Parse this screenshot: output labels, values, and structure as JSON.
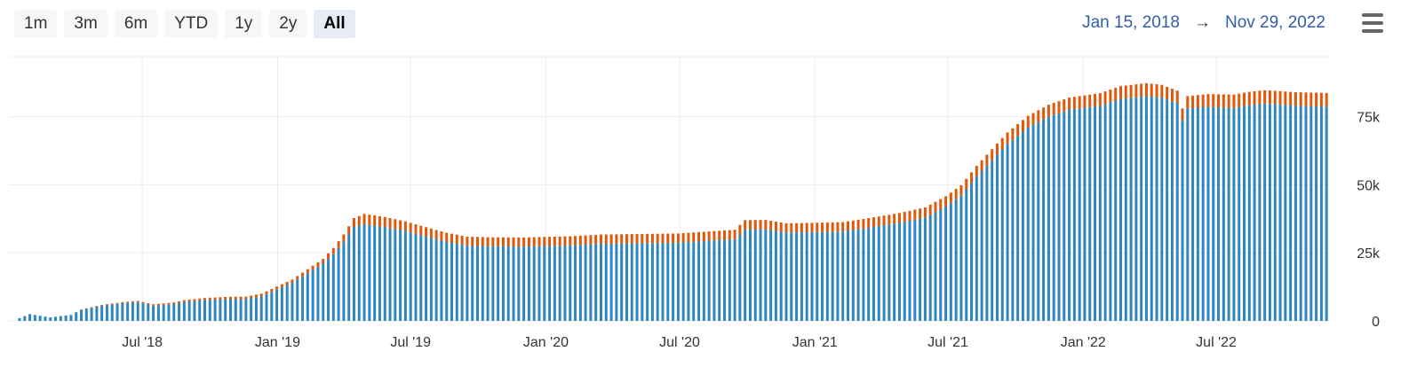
{
  "range_selector": {
    "buttons": [
      "1m",
      "3m",
      "6m",
      "YTD",
      "1y",
      "2y",
      "All"
    ],
    "selected": "All"
  },
  "date_range": {
    "from": "Jan 15, 2018",
    "arrow": "→",
    "to": "Nov 29, 2022"
  },
  "icons": {
    "menu": "hamburger-menu-icon"
  },
  "colors": {
    "series_base": "#2e86c1",
    "series_top": "#e1580a",
    "accent": "#335cad"
  },
  "chart_data": {
    "type": "bar",
    "stacked": true,
    "x_axis_ticks": [
      "Jul '18",
      "Jan '19",
      "Jul '19",
      "Jan '20",
      "Jul '20",
      "Jan '21",
      "Jul '21",
      "Jan '22",
      "Jul '22"
    ],
    "y_axis_ticks": [
      "0",
      "25k",
      "50k",
      "75k"
    ],
    "ylim": [
      0,
      97000
    ],
    "grid": true,
    "y_axis_position": "right",
    "x_start": "2018-01-15",
    "x_end": "2022-11-29",
    "series": [
      {
        "color": "#2e86c1",
        "points": [
          [
            "2018-01-15",
            1000
          ],
          [
            "2018-01-29",
            2500
          ],
          [
            "2018-02-26",
            1300
          ],
          [
            "2018-03-26",
            2200
          ],
          [
            "2018-04-09",
            4000
          ],
          [
            "2018-05-07",
            5600
          ],
          [
            "2018-06-04",
            6500
          ],
          [
            "2018-06-25",
            6900
          ],
          [
            "2018-07-16",
            5600
          ],
          [
            "2018-08-13",
            6200
          ],
          [
            "2018-08-27",
            7000
          ],
          [
            "2018-09-24",
            7700
          ],
          [
            "2018-10-22",
            8000
          ],
          [
            "2018-11-19",
            8000
          ],
          [
            "2018-12-10",
            9000
          ],
          [
            "2018-12-31",
            11500
          ],
          [
            "2019-01-21",
            14000
          ],
          [
            "2019-02-11",
            17500
          ],
          [
            "2019-03-04",
            21000
          ],
          [
            "2019-03-18",
            24500
          ],
          [
            "2019-04-01",
            29000
          ],
          [
            "2019-04-15",
            34500
          ],
          [
            "2019-04-29",
            35500
          ],
          [
            "2019-05-27",
            34500
          ],
          [
            "2019-06-24",
            33000
          ],
          [
            "2019-07-22",
            31000
          ],
          [
            "2019-08-19",
            29000
          ],
          [
            "2019-09-16",
            27600
          ],
          [
            "2019-10-21",
            27400
          ],
          [
            "2019-12-02",
            27300
          ],
          [
            "2020-02-03",
            27700
          ],
          [
            "2020-03-16",
            28300
          ],
          [
            "2020-05-04",
            28500
          ],
          [
            "2020-06-29",
            28700
          ],
          [
            "2020-07-27",
            29200
          ],
          [
            "2020-09-14",
            30000
          ],
          [
            "2020-09-28",
            33500
          ],
          [
            "2020-10-26",
            33600
          ],
          [
            "2020-11-23",
            32400
          ],
          [
            "2020-12-28",
            32600
          ],
          [
            "2021-02-08",
            32800
          ],
          [
            "2021-03-15",
            34200
          ],
          [
            "2021-04-26",
            36000
          ],
          [
            "2021-05-31",
            38000
          ],
          [
            "2021-06-28",
            42000
          ],
          [
            "2021-07-19",
            46000
          ],
          [
            "2021-08-09",
            53000
          ],
          [
            "2021-08-30",
            59000
          ],
          [
            "2021-09-20",
            65000
          ],
          [
            "2021-10-18",
            71000
          ],
          [
            "2021-11-15",
            75000
          ],
          [
            "2021-12-13",
            77500
          ],
          [
            "2022-01-24",
            79000
          ],
          [
            "2022-02-21",
            81500
          ],
          [
            "2022-03-28",
            82500
          ],
          [
            "2022-04-18",
            82000
          ],
          [
            "2022-05-09",
            80000
          ],
          [
            "2022-05-16",
            73500
          ],
          [
            "2022-05-23",
            78000
          ],
          [
            "2022-06-20",
            78600
          ],
          [
            "2022-07-25",
            78200
          ],
          [
            "2022-08-15",
            79200
          ],
          [
            "2022-09-05",
            79800
          ],
          [
            "2022-10-17",
            79000
          ],
          [
            "2022-11-29",
            78700
          ]
        ]
      },
      {
        "color": "#e1580a",
        "points": [
          [
            "2018-01-15",
            0
          ],
          [
            "2018-03-26",
            0
          ],
          [
            "2018-04-09",
            200
          ],
          [
            "2018-07-16",
            500
          ],
          [
            "2018-10-22",
            800
          ],
          [
            "2019-01-21",
            1200
          ],
          [
            "2019-03-04",
            1800
          ],
          [
            "2019-04-08",
            3000
          ],
          [
            "2019-04-29",
            3800
          ],
          [
            "2019-07-22",
            3400
          ],
          [
            "2019-10-21",
            3300
          ],
          [
            "2020-03-16",
            3400
          ],
          [
            "2020-07-27",
            3400
          ],
          [
            "2020-09-28",
            3500
          ],
          [
            "2020-12-28",
            3400
          ],
          [
            "2021-04-26",
            3600
          ],
          [
            "2021-07-19",
            3800
          ],
          [
            "2021-09-20",
            4200
          ],
          [
            "2021-12-13",
            4500
          ],
          [
            "2022-03-28",
            4800
          ],
          [
            "2022-05-16",
            4500
          ],
          [
            "2022-07-25",
            4900
          ],
          [
            "2022-11-29",
            5000
          ]
        ]
      }
    ]
  }
}
